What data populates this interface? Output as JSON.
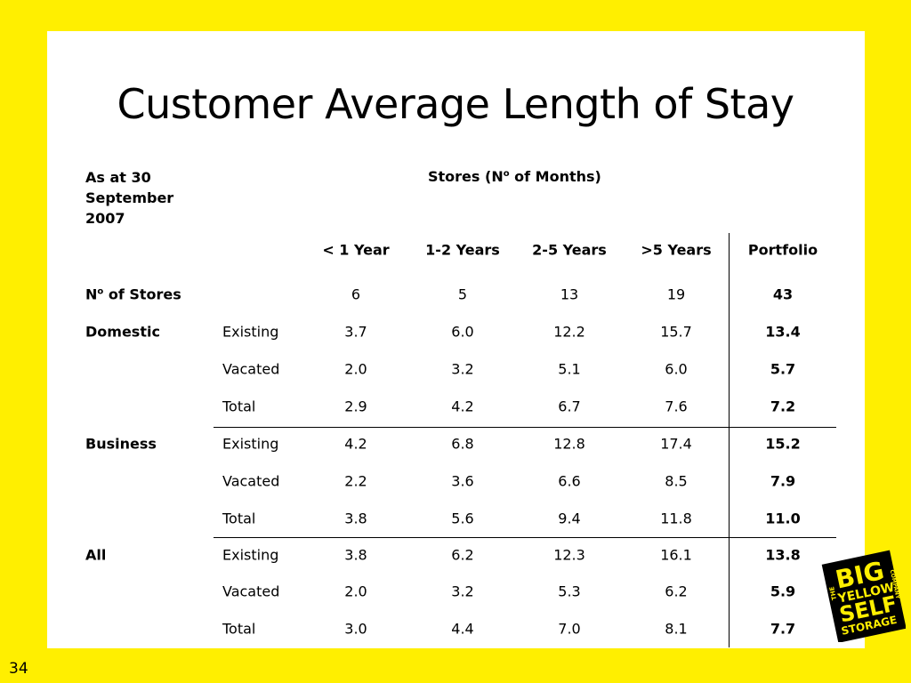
{
  "title": "Customer Average Length of Stay",
  "as_at": [
    "As at 30",
    "September",
    "2007"
  ],
  "stores_header": {
    "pre": "Stores (N",
    "sup": "o",
    "post": " of Months)"
  },
  "columns": [
    "< 1 Year",
    "1-2 Years",
    "2-5 Years",
    ">5 Years",
    "Portfolio"
  ],
  "num_stores": {
    "label_pre": "N",
    "label_sup": "o",
    "label_post": " of Stores",
    "values": [
      "6",
      "5",
      "13",
      "19",
      "43"
    ]
  },
  "groups": [
    {
      "name": "Domestic",
      "rows": [
        {
          "label": "Existing",
          "values": [
            "3.7",
            "6.0",
            "12.2",
            "15.7",
            "13.4"
          ]
        },
        {
          "label": "Vacated",
          "values": [
            "2.0",
            "3.2",
            "5.1",
            "6.0",
            "5.7"
          ]
        },
        {
          "label": "Total",
          "values": [
            "2.9",
            "4.2",
            "6.7",
            "7.6",
            "7.2"
          ]
        }
      ]
    },
    {
      "name": "Business",
      "rows": [
        {
          "label": "Existing",
          "values": [
            "4.2",
            "6.8",
            "12.8",
            "17.4",
            "15.2"
          ]
        },
        {
          "label": "Vacated",
          "values": [
            "2.2",
            "3.6",
            "6.6",
            "8.5",
            "7.9"
          ]
        },
        {
          "label": "Total",
          "values": [
            "3.8",
            "5.6",
            "9.4",
            "11.8",
            "11.0"
          ]
        }
      ]
    },
    {
      "name": "All",
      "rows": [
        {
          "label": "Existing",
          "values": [
            "3.8",
            "6.2",
            "12.3",
            "16.1",
            "13.8"
          ]
        },
        {
          "label": "Vacated",
          "values": [
            "2.0",
            "3.2",
            "5.3",
            "6.2",
            "5.9"
          ]
        },
        {
          "label": "Total",
          "values": [
            "3.0",
            "4.4",
            "7.0",
            "8.1",
            "7.7"
          ]
        }
      ]
    }
  ],
  "page_number": "34",
  "logo": {
    "line1": "THE",
    "line2": "BIG",
    "line3": "YELLOW",
    "line4": "SELF",
    "line5": "STORAGE",
    "line6": "COMPANY"
  },
  "colors": {
    "background": "#FFEF00",
    "slide": "#FFFFFF",
    "text": "#000000"
  }
}
